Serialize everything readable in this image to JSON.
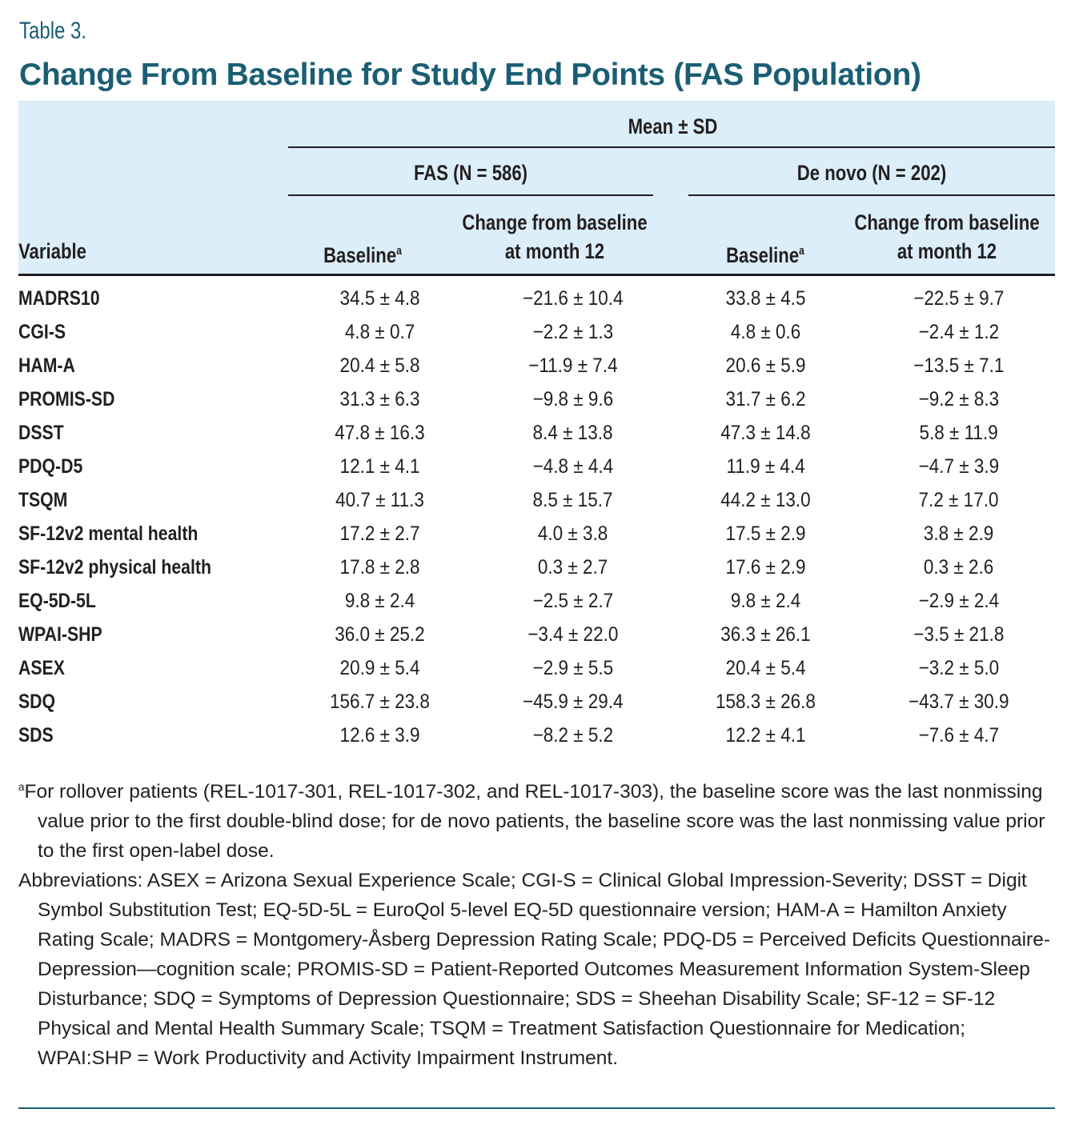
{
  "table_label": "Table 3.",
  "title": "Change From Baseline for Study End Points (FAS Population)",
  "header": {
    "group": "Mean ± SD",
    "fas": "FAS (N = 586)",
    "denovo": "De novo (N = 202)",
    "variable": "Variable",
    "baseline": "Baseline",
    "baseline_sup": "a",
    "change_line1": "Change from baseline",
    "change_line2": "at month 12"
  },
  "rows": [
    {
      "variable": "MADRS10",
      "fas_baseline": "34.5 ± 4.8",
      "fas_change": "−21.6 ± 10.4",
      "dn_baseline": "33.8 ± 4.5",
      "dn_change": "−22.5 ± 9.7"
    },
    {
      "variable": "CGI-S",
      "fas_baseline": "4.8 ± 0.7",
      "fas_change": "−2.2 ± 1.3",
      "dn_baseline": "4.8 ± 0.6",
      "dn_change": "−2.4 ± 1.2"
    },
    {
      "variable": "HAM-A",
      "fas_baseline": "20.4 ± 5.8",
      "fas_change": "−11.9 ± 7.4",
      "dn_baseline": "20.6 ± 5.9",
      "dn_change": "−13.5 ± 7.1"
    },
    {
      "variable": "PROMIS-SD",
      "fas_baseline": "31.3 ± 6.3",
      "fas_change": "−9.8 ± 9.6",
      "dn_baseline": "31.7 ± 6.2",
      "dn_change": "−9.2 ± 8.3"
    },
    {
      "variable": "DSST",
      "fas_baseline": "47.8 ± 16.3",
      "fas_change": "8.4 ± 13.8",
      "dn_baseline": "47.3 ± 14.8",
      "dn_change": "5.8 ± 11.9"
    },
    {
      "variable": "PDQ-D5",
      "fas_baseline": "12.1 ± 4.1",
      "fas_change": "−4.8 ± 4.4",
      "dn_baseline": "11.9 ± 4.4",
      "dn_change": "−4.7 ± 3.9"
    },
    {
      "variable": "TSQM",
      "fas_baseline": "40.7 ± 11.3",
      "fas_change": "8.5 ± 15.7",
      "dn_baseline": "44.2 ± 13.0",
      "dn_change": "7.2 ± 17.0"
    },
    {
      "variable": "SF-12v2 mental health",
      "fas_baseline": "17.2 ± 2.7",
      "fas_change": "4.0 ± 3.8",
      "dn_baseline": "17.5 ± 2.9",
      "dn_change": "3.8 ± 2.9"
    },
    {
      "variable": "SF-12v2 physical health",
      "fas_baseline": "17.8 ± 2.8",
      "fas_change": "0.3 ± 2.7",
      "dn_baseline": "17.6 ± 2.9",
      "dn_change": "0.3 ± 2.6"
    },
    {
      "variable": "EQ-5D-5L",
      "fas_baseline": "9.8 ± 2.4",
      "fas_change": "−2.5 ± 2.7",
      "dn_baseline": "9.8 ± 2.4",
      "dn_change": "−2.9 ± 2.4"
    },
    {
      "variable": "WPAI-SHP",
      "fas_baseline": "36.0 ± 25.2",
      "fas_change": "−3.4 ± 22.0",
      "dn_baseline": "36.3 ± 26.1",
      "dn_change": "−3.5 ± 21.8"
    },
    {
      "variable": "ASEX",
      "fas_baseline": "20.9 ± 5.4",
      "fas_change": "−2.9 ± 5.5",
      "dn_baseline": "20.4 ± 5.4",
      "dn_change": "−3.2 ± 5.0"
    },
    {
      "variable": "SDQ",
      "fas_baseline": "156.7 ± 23.8",
      "fas_change": "−45.9 ± 29.4",
      "dn_baseline": "158.3 ± 26.8",
      "dn_change": "−43.7 ± 30.9"
    },
    {
      "variable": "SDS",
      "fas_baseline": "12.6 ± 3.9",
      "fas_change": "−8.2 ± 5.2",
      "dn_baseline": "12.2 ± 4.1",
      "dn_change": "−7.6 ± 4.7"
    }
  ],
  "footnote_sup": "a",
  "footnote": "For rollover patients (REL-1017-301, REL-1017-302, and REL-1017-303), the baseline score was the last nonmissing value prior to the first double-blind dose; for de novo patients, the baseline score was the last nonmissing value prior to the first open-label dose.",
  "abbreviations": "Abbreviations: ASEX = Arizona Sexual Experience Scale; CGI-S = Clinical Global Impression-Severity; DSST = Digit Symbol Substitution Test; EQ-5D-5L = EuroQol 5-level EQ-5D questionnaire version; HAM-A = Hamilton Anxiety Rating Scale; MADRS = Montgomery-Åsberg Depression Rating Scale; PDQ-D5 = Perceived Deficits Questionnaire-Depression—cognition scale; PROMIS-SD = Patient-Reported Outcomes Measurement Information System-Sleep Disturbance; SDQ = Symptoms of Depression Questionnaire; SDS = Sheehan Disability Scale; SF-12 = SF-12 Physical and Mental Health Summary Scale; TSQM = Treatment Satisfaction Questionnaire for Medication; WPAI:SHP = Work Productivity and Activity Impairment Instrument.",
  "colors": {
    "title": "#1a5e74",
    "header_bg": "#dbeef9"
  }
}
